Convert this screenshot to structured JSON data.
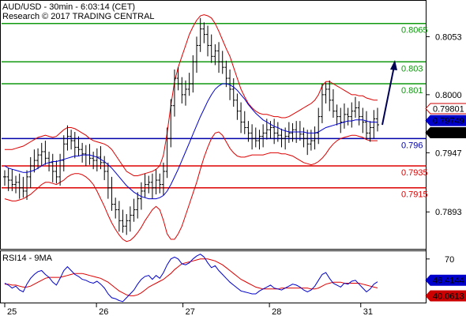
{
  "header": {
    "symbol_line": "AUD/USD - 30min - 6:03:14 (CET)",
    "credit_line": "Research © 2017 TRADING CENTRAL"
  },
  "colors": {
    "background": "#ffffff",
    "price": "#000000",
    "bollinger": "#dd0000",
    "moving_average": "#0000cc",
    "support_resistance_green": "#119911",
    "support_resistance_red": "#dd0000",
    "pivot_blue": "#0000aa",
    "rsi": "#0000cc",
    "rsi_ma": "#dd0000",
    "arrow": "#000055",
    "tag_red": "#cc0000",
    "tag_blue": "#0000cc",
    "tag_black": "#000000"
  },
  "chart_data": [
    {
      "type": "line",
      "panel": "price",
      "ylim": [
        0.786,
        0.8085
      ],
      "y_ticks": [
        "0.8053",
        "0.8000",
        "0.7947",
        "0.7893"
      ],
      "y_tick_values": [
        0.8053,
        0.8,
        0.7947,
        0.7893
      ],
      "x_ticks": [
        "25",
        "26",
        "27",
        "28",
        "31"
      ],
      "levels": [
        {
          "label": "0.8065",
          "value": 0.8065,
          "color": "#119911"
        },
        {
          "label": "0.803",
          "value": 0.803,
          "color": "#119911"
        },
        {
          "label": "0.801",
          "value": 0.801,
          "color": "#119911"
        },
        {
          "label": "0.796",
          "value": 0.796,
          "color": "#0000aa"
        },
        {
          "label": "0.7935",
          "value": 0.7935,
          "color": "#dd0000"
        },
        {
          "label": "0.7915",
          "value": 0.7915,
          "color": "#dd0000"
        }
      ],
      "price_tags": [
        {
          "label": "0.79801",
          "value": 0.79801,
          "style": "outline-red"
        },
        {
          "label": "0.79749",
          "value": 0.79749,
          "style": "blue"
        },
        {
          "label": "0.79725",
          "value": 0.79725,
          "style": "black"
        }
      ],
      "series": [
        {
          "role": "close",
          "values": [
            0.7925,
            0.7922,
            0.7918,
            0.792,
            0.7915,
            0.7912,
            0.7925,
            0.7935,
            0.794,
            0.7945,
            0.7948,
            0.7942,
            0.7938,
            0.793,
            0.7925,
            0.794,
            0.7955,
            0.7962,
            0.7958,
            0.7952,
            0.795,
            0.7946,
            0.7945,
            0.7942,
            0.794,
            0.7943,
            0.7938,
            0.793,
            0.7915,
            0.79,
            0.7895,
            0.7885,
            0.788,
            0.7885,
            0.789,
            0.7895,
            0.7905,
            0.7912,
            0.7918,
            0.792,
            0.7915,
            0.7922,
            0.7918,
            0.793,
            0.796,
            0.799,
            0.8015,
            0.801,
            0.8,
            0.8005,
            0.801,
            0.803,
            0.8045,
            0.806,
            0.8055,
            0.8045,
            0.8035,
            0.804,
            0.803,
            0.8025,
            0.8015,
            0.8005,
            0.7995,
            0.7985,
            0.7975,
            0.797,
            0.7965,
            0.796,
            0.7958,
            0.7962,
            0.7965,
            0.7968,
            0.797,
            0.7965,
            0.7963,
            0.796,
            0.7962,
            0.7965,
            0.7968,
            0.7966,
            0.7964,
            0.796,
            0.7955,
            0.7958,
            0.7965,
            0.798,
            0.8,
            0.8005,
            0.7995,
            0.7985,
            0.798,
            0.7975,
            0.7982,
            0.798,
            0.7985,
            0.7988,
            0.798,
            0.7975,
            0.7965,
            0.797,
            0.7978,
            0.79725
          ]
        },
        {
          "role": "bollinger_upper",
          "values": [
            0.795,
            0.795,
            0.795,
            0.7951,
            0.7952,
            0.7953,
            0.7955,
            0.7957,
            0.7959,
            0.7961,
            0.7962,
            0.7963,
            0.7962,
            0.7961,
            0.7962,
            0.7965,
            0.7968,
            0.797,
            0.797,
            0.7969,
            0.7967,
            0.7965,
            0.7963,
            0.796,
            0.7958,
            0.7957,
            0.7956,
            0.7955,
            0.7953,
            0.795,
            0.7945,
            0.794,
            0.7935,
            0.793,
            0.7928,
            0.7926,
            0.7926,
            0.7927,
            0.7928,
            0.7929,
            0.793,
            0.7932,
            0.7935,
            0.7945,
            0.7965,
            0.799,
            0.8012,
            0.8025,
            0.8035,
            0.8045,
            0.8055,
            0.8062,
            0.8068,
            0.8072,
            0.8073,
            0.8072,
            0.807,
            0.8065,
            0.8058,
            0.805,
            0.8042,
            0.8035,
            0.8025,
            0.8015,
            0.8005,
            0.7998,
            0.7992,
            0.7988,
            0.7985,
            0.7983,
            0.7982,
            0.7982,
            0.7981,
            0.798,
            0.798,
            0.7979,
            0.7979,
            0.798,
            0.7982,
            0.7984,
            0.7986,
            0.7988,
            0.799,
            0.7992,
            0.7995,
            0.8,
            0.8008,
            0.8012,
            0.8012,
            0.801,
            0.8008,
            0.8006,
            0.8004,
            0.8002,
            0.8,
            0.8,
            0.7999,
            0.7999,
            0.7997,
            0.7996,
            0.7995,
            0.7995
          ]
        },
        {
          "role": "bollinger_lower",
          "values": [
            0.7905,
            0.7904,
            0.7903,
            0.7903,
            0.7904,
            0.7905,
            0.7907,
            0.7909,
            0.7912,
            0.7915,
            0.7918,
            0.792,
            0.792,
            0.7919,
            0.7918,
            0.792,
            0.7922,
            0.7925,
            0.7927,
            0.7928,
            0.7928,
            0.7927,
            0.7925,
            0.7922,
            0.7918,
            0.7912,
            0.7905,
            0.7898,
            0.789,
            0.7883,
            0.7877,
            0.7872,
            0.7868,
            0.7866,
            0.7867,
            0.787,
            0.7874,
            0.7879,
            0.7885,
            0.789,
            0.7895,
            0.7898,
            0.7895,
            0.7885,
            0.7873,
            0.7868,
            0.7868,
            0.7873,
            0.788,
            0.789,
            0.79,
            0.791,
            0.792,
            0.7932,
            0.7943,
            0.7952,
            0.796,
            0.7965,
            0.7966,
            0.7963,
            0.7957,
            0.7951,
            0.7947,
            0.7944,
            0.7943,
            0.7943,
            0.7944,
            0.7945,
            0.7945,
            0.7945,
            0.7945,
            0.7946,
            0.7947,
            0.7947,
            0.7947,
            0.7946,
            0.7946,
            0.7945,
            0.7944,
            0.7942,
            0.794,
            0.7938,
            0.7937,
            0.7936,
            0.7937,
            0.7939,
            0.7942,
            0.7946,
            0.7951,
            0.7955,
            0.7958,
            0.796,
            0.7961,
            0.7962,
            0.7963,
            0.7963,
            0.7962,
            0.7961,
            0.7959,
            0.7958,
            0.7958,
            0.7958
          ]
        },
        {
          "role": "moving_average",
          "values": [
            0.7935,
            0.7933,
            0.7932,
            0.7931,
            0.793,
            0.7929,
            0.7929,
            0.793,
            0.7931,
            0.7933,
            0.7935,
            0.7937,
            0.7938,
            0.7939,
            0.7939,
            0.794,
            0.7941,
            0.7942,
            0.7943,
            0.7944,
            0.7944,
            0.7945,
            0.7945,
            0.7945,
            0.7944,
            0.7943,
            0.7941,
            0.7939,
            0.7936,
            0.7933,
            0.7929,
            0.7925,
            0.7921,
            0.7917,
            0.7914,
            0.7911,
            0.7909,
            0.7907,
            0.7906,
            0.7905,
            0.7905,
            0.7905,
            0.7906,
            0.7908,
            0.7912,
            0.7918,
            0.7925,
            0.7932,
            0.794,
            0.7948,
            0.7956,
            0.7964,
            0.7972,
            0.798,
            0.7987,
            0.7994,
            0.8,
            0.8005,
            0.8008,
            0.801,
            0.801,
            0.8009,
            0.8007,
            0.8004,
            0.8,
            0.7996,
            0.7991,
            0.7987,
            0.7983,
            0.798,
            0.7977,
            0.7975,
            0.7973,
            0.7971,
            0.797,
            0.7968,
            0.7967,
            0.7966,
            0.7966,
            0.7966,
            0.7966,
            0.7966,
            0.7965,
            0.7965,
            0.7965,
            0.7966,
            0.7968,
            0.797,
            0.7971,
            0.7972,
            0.7973,
            0.7974,
            0.7975,
            0.7976,
            0.7976,
            0.7977,
            0.7977,
            0.7977,
            0.7976,
            0.7975,
            0.7975,
            0.79749
          ]
        }
      ]
    },
    {
      "type": "line",
      "panel": "rsi",
      "title": "RSI14 - 9MA",
      "ylim": [
        25,
        78
      ],
      "y_ticks": [
        "70"
      ],
      "y_tick_values": [
        70
      ],
      "value_tags": [
        {
          "label": "46.4144",
          "value": 46.4144,
          "style": "blue"
        },
        {
          "label": "40.0613",
          "value": 40.0613,
          "style": "red"
        }
      ],
      "series": [
        {
          "role": "rsi",
          "values": [
            45,
            43,
            40,
            42,
            38,
            36,
            44,
            50,
            54,
            57,
            58,
            54,
            51,
            46,
            43,
            50,
            58,
            62,
            58,
            54,
            52,
            49,
            48,
            46,
            45,
            47,
            44,
            40,
            34,
            30,
            29,
            27,
            26,
            30,
            34,
            38,
            44,
            49,
            52,
            53,
            49,
            53,
            50,
            56,
            64,
            70,
            72,
            70,
            65,
            64,
            66,
            70,
            73,
            75,
            72,
            66,
            61,
            63,
            58,
            54,
            50,
            46,
            43,
            40,
            37,
            36,
            35,
            34,
            34,
            37,
            39,
            41,
            43,
            40,
            39,
            38,
            40,
            42,
            44,
            43,
            41,
            38,
            36,
            38,
            42,
            48,
            54,
            56,
            50,
            45,
            43,
            41,
            45,
            44,
            47,
            48,
            44,
            40,
            36,
            39,
            44,
            46.4144
          ]
        },
        {
          "role": "ma",
          "values": [
            44,
            44,
            43,
            43,
            42,
            41,
            41,
            42,
            44,
            46,
            48,
            50,
            51,
            51,
            51,
            51,
            52,
            53,
            54,
            55,
            55,
            55,
            54,
            53,
            52,
            51,
            50,
            48,
            46,
            43,
            40,
            37,
            35,
            33,
            32,
            32,
            33,
            35,
            38,
            41,
            43,
            45,
            47,
            49,
            52,
            55,
            59,
            62,
            65,
            66,
            67,
            68,
            69,
            70,
            70,
            70,
            69,
            68,
            66,
            64,
            61,
            58,
            55,
            52,
            49,
            47,
            45,
            43,
            41,
            40,
            39,
            39,
            39,
            39,
            39,
            40,
            40,
            40,
            40,
            40,
            40,
            40,
            40,
            39,
            39,
            40,
            42,
            44,
            45,
            46,
            46,
            46,
            45,
            45,
            45,
            45,
            45,
            44,
            43,
            42,
            41,
            40.0613
          ]
        }
      ]
    }
  ]
}
